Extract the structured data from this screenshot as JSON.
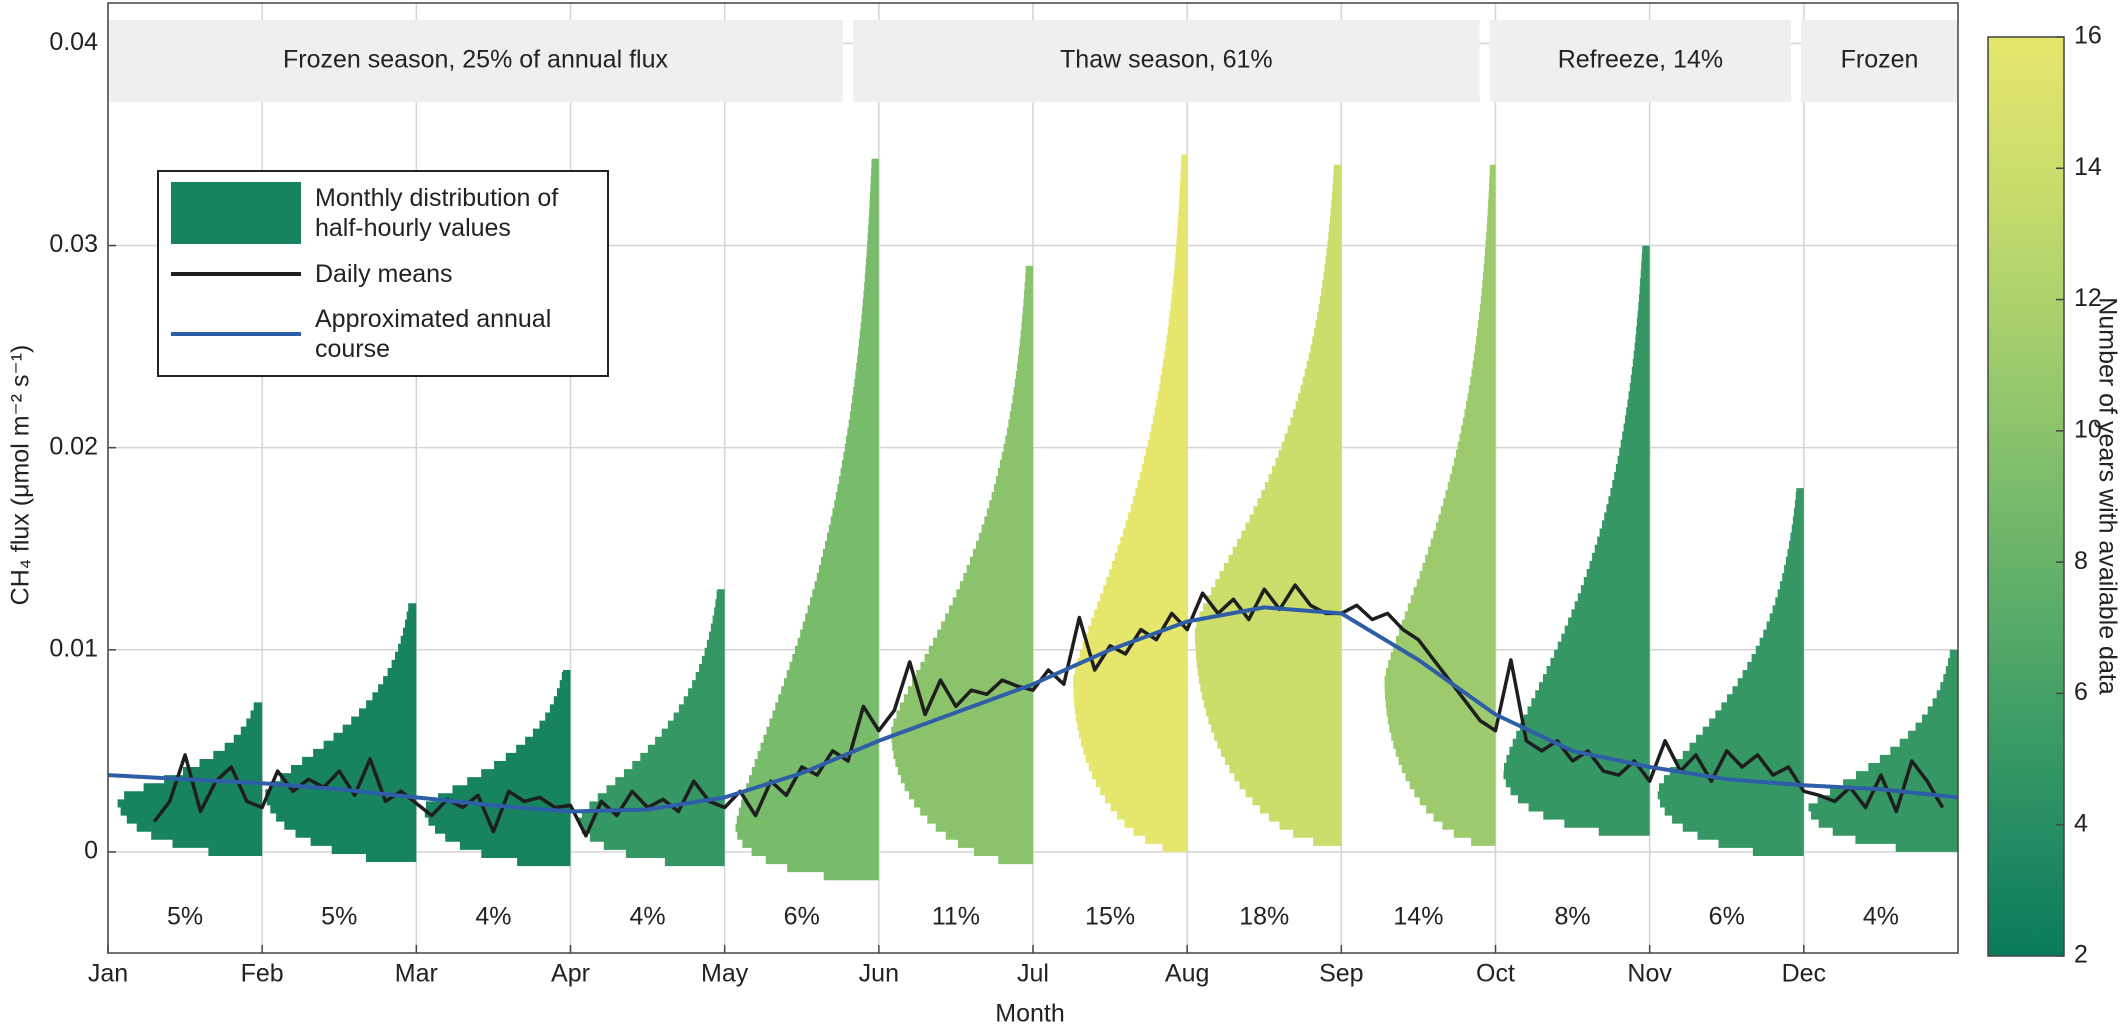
{
  "chart_data": {
    "type": "distribution",
    "ylabel": "CH₄ flux (μmol m⁻² s⁻¹)",
    "xlabel": "Month",
    "categories": [
      "Jan",
      "Feb",
      "Mar",
      "Apr",
      "May",
      "Jun",
      "Jul",
      "Aug",
      "Sep",
      "Oct",
      "Nov",
      "Dec"
    ],
    "xticks": [
      0,
      1,
      2,
      3,
      4,
      5,
      6,
      7,
      8,
      9,
      10,
      11
    ],
    "xlim": [
      0,
      12
    ],
    "ylim": [
      -0.005,
      0.042
    ],
    "yticks": [
      0,
      0.01,
      0.02,
      0.03,
      0.04
    ],
    "grid": true,
    "seasons": [
      {
        "label": "Frozen season, 25% of annual flux",
        "start": 0,
        "end": 4.8
      },
      {
        "label": "Thaw season, 61%",
        "start": 4.8,
        "end": 8.93
      },
      {
        "label": "Refreeze, 14%",
        "start": 8.93,
        "end": 10.95
      },
      {
        "label": "Frozen",
        "start": 10.95,
        "end": 12
      }
    ],
    "monthly_share": {
      "values": [
        5,
        5,
        4,
        4,
        6,
        11,
        15,
        18,
        14,
        8,
        6,
        4
      ],
      "value_labels": [
        "5%",
        "5%",
        "4%",
        "4%",
        "6%",
        "11%",
        "15%",
        "18%",
        "14%",
        "8%",
        "6%",
        "4%"
      ]
    },
    "distributions": {
      "name": "Monthly distribution of half-hourly values",
      "min": [
        -0.0002,
        -0.0005,
        -0.0007,
        -0.0007,
        -0.0014,
        -0.0006,
        0.0,
        0.0003,
        0.0003,
        0.0008,
        -0.0002,
        0.0
      ],
      "peak": [
        0.0026,
        0.003,
        0.0022,
        0.0016,
        0.0012,
        0.006,
        0.0085,
        0.011,
        0.0085,
        0.004,
        0.003,
        0.0022
      ],
      "max": [
        0.0074,
        0.0123,
        0.009,
        0.013,
        0.0343,
        0.029,
        0.0345,
        0.034,
        0.034,
        0.03,
        0.018,
        0.01
      ],
      "width": [
        0.94,
        0.98,
        0.95,
        0.95,
        0.93,
        0.92,
        0.74,
        0.95,
        0.72,
        0.95,
        0.95,
        0.97
      ],
      "years": [
        3,
        3,
        3,
        5,
        9,
        10,
        16,
        14,
        11,
        5,
        5,
        5
      ]
    },
    "series": [
      {
        "name": "Daily means",
        "color": "#1e1e1e",
        "x": [
          0.3,
          0.4,
          0.5,
          0.6,
          0.7,
          0.8,
          0.9,
          1,
          1.1,
          1.2,
          1.3,
          1.4,
          1.5,
          1.6,
          1.7,
          1.8,
          1.9,
          2,
          2.1,
          2.2,
          2.3,
          2.4,
          2.5,
          2.6,
          2.7,
          2.8,
          2.9,
          3,
          3.1,
          3.2,
          3.3,
          3.4,
          3.5,
          3.6,
          3.7,
          3.8,
          3.9,
          4,
          4.1,
          4.2,
          4.3,
          4.4,
          4.5,
          4.6,
          4.7,
          4.8,
          4.9,
          5,
          5.1,
          5.2,
          5.3,
          5.4,
          5.5,
          5.6,
          5.7,
          5.8,
          5.9,
          6,
          6.1,
          6.2,
          6.3,
          6.4,
          6.5,
          6.6,
          6.7,
          6.8,
          6.9,
          7,
          7.1,
          7.2,
          7.3,
          7.4,
          7.5,
          7.6,
          7.7,
          7.8,
          7.9,
          8,
          8.1,
          8.2,
          8.3,
          8.4,
          8.5,
          8.6,
          8.7,
          8.8,
          8.9,
          9,
          9.1,
          9.2,
          9.3,
          9.4,
          9.5,
          9.6,
          9.7,
          9.8,
          9.9,
          10,
          10.1,
          10.2,
          10.3,
          10.4,
          10.5,
          10.6,
          10.7,
          10.8,
          10.9,
          11,
          11.1,
          11.2,
          11.3,
          11.4,
          11.5,
          11.6,
          11.7,
          11.8,
          11.9
        ],
        "values": [
          0.0015,
          0.0025,
          0.0048,
          0.002,
          0.0035,
          0.0042,
          0.0025,
          0.0022,
          0.004,
          0.003,
          0.0036,
          0.0032,
          0.004,
          0.0028,
          0.0046,
          0.0025,
          0.003,
          0.0024,
          0.0018,
          0.0026,
          0.0022,
          0.0028,
          0.001,
          0.003,
          0.0025,
          0.0027,
          0.0022,
          0.0023,
          0.0008,
          0.0025,
          0.0018,
          0.003,
          0.0022,
          0.0026,
          0.002,
          0.0035,
          0.0025,
          0.0022,
          0.003,
          0.0018,
          0.0035,
          0.0028,
          0.0042,
          0.0038,
          0.005,
          0.0045,
          0.0072,
          0.006,
          0.007,
          0.0094,
          0.0068,
          0.0085,
          0.0072,
          0.008,
          0.0078,
          0.0085,
          0.0082,
          0.008,
          0.009,
          0.0083,
          0.0116,
          0.009,
          0.0102,
          0.0098,
          0.011,
          0.0105,
          0.0118,
          0.011,
          0.0128,
          0.0118,
          0.0125,
          0.0115,
          0.013,
          0.012,
          0.0132,
          0.0122,
          0.0118,
          0.0118,
          0.0122,
          0.0115,
          0.0118,
          0.011,
          0.0105,
          0.0095,
          0.0085,
          0.0075,
          0.0065,
          0.006,
          0.0095,
          0.0055,
          0.005,
          0.0055,
          0.0045,
          0.005,
          0.004,
          0.0038,
          0.0045,
          0.0035,
          0.0055,
          0.004,
          0.0048,
          0.0035,
          0.005,
          0.0042,
          0.0048,
          0.0038,
          0.0042,
          0.003,
          0.0028,
          0.0025,
          0.0032,
          0.0022,
          0.0038,
          0.002,
          0.0045,
          0.0035,
          0.0022
        ]
      },
      {
        "name": "Approximated annual course",
        "color": "#2f5ea8",
        "x": [
          0,
          0.5,
          1,
          1.5,
          2,
          2.5,
          3,
          3.5,
          4,
          4.5,
          5,
          5.5,
          6,
          6.5,
          7,
          7.5,
          8,
          8.5,
          9,
          9.5,
          10,
          10.5,
          11,
          11.5,
          12
        ],
        "values": [
          0.0038,
          0.0036,
          0.0034,
          0.0031,
          0.0027,
          0.0023,
          0.002,
          0.0021,
          0.0027,
          0.0039,
          0.0055,
          0.0069,
          0.0083,
          0.01,
          0.0114,
          0.0121,
          0.0118,
          0.0095,
          0.0068,
          0.005,
          0.0042,
          0.0036,
          0.0033,
          0.0031,
          0.0027
        ]
      }
    ],
    "colorbar": {
      "label": "Number of years with available data",
      "lim": [
        2,
        16
      ],
      "ticks": [
        2,
        4,
        6,
        8,
        10,
        12,
        14,
        16
      ],
      "colors": [
        "#0a7a5c",
        "#2a9163",
        "#4fa767",
        "#78bb6b",
        "#a2cd6c",
        "#c8dc6b",
        "#e5e66c"
      ]
    }
  }
}
